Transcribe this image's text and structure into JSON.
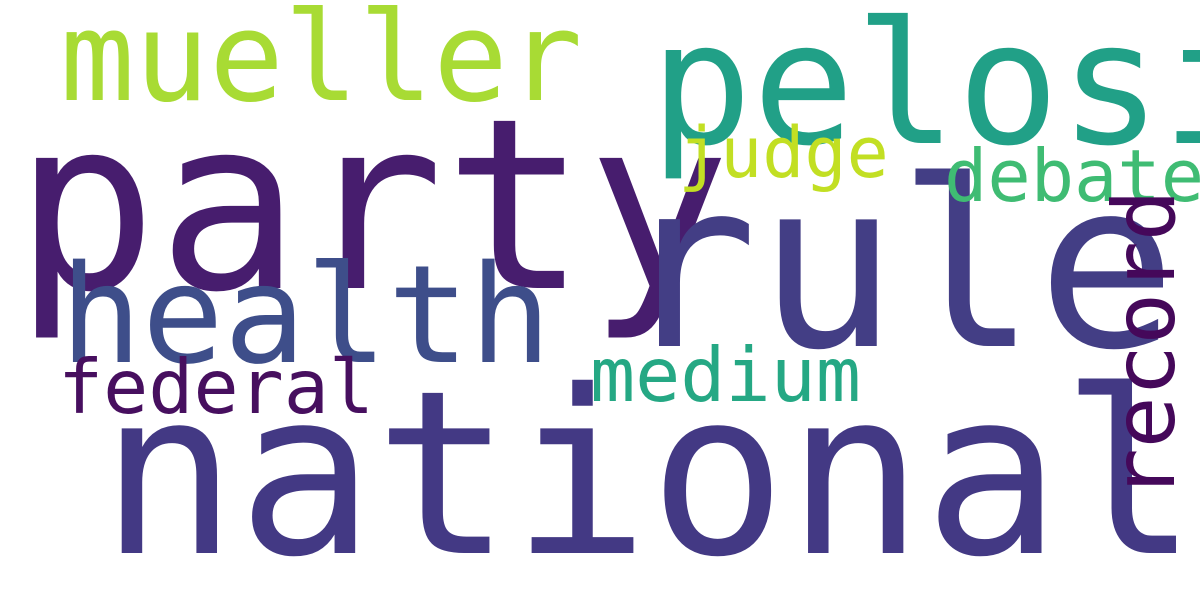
{
  "words": {
    "party": {
      "text": "party",
      "color": "#471d6e"
    },
    "rule": {
      "text": "rule",
      "color": "#433e85"
    },
    "national": {
      "text": "national",
      "color": "#433984"
    },
    "pelosi": {
      "text": "pelosi",
      "color": "#21a087"
    },
    "mueller": {
      "text": "mueller",
      "color": "#a8db34"
    },
    "health": {
      "text": "health",
      "color": "#3e4e8a"
    },
    "judge": {
      "text": "judge",
      "color": "#c2df23"
    },
    "debate": {
      "text": "debate",
      "color": "#3fbc73"
    },
    "medium": {
      "text": "medium",
      "color": "#25a884"
    },
    "federal": {
      "text": "federal",
      "color": "#470f5f"
    },
    "record": {
      "text": "record",
      "color": "#45085a"
    }
  }
}
